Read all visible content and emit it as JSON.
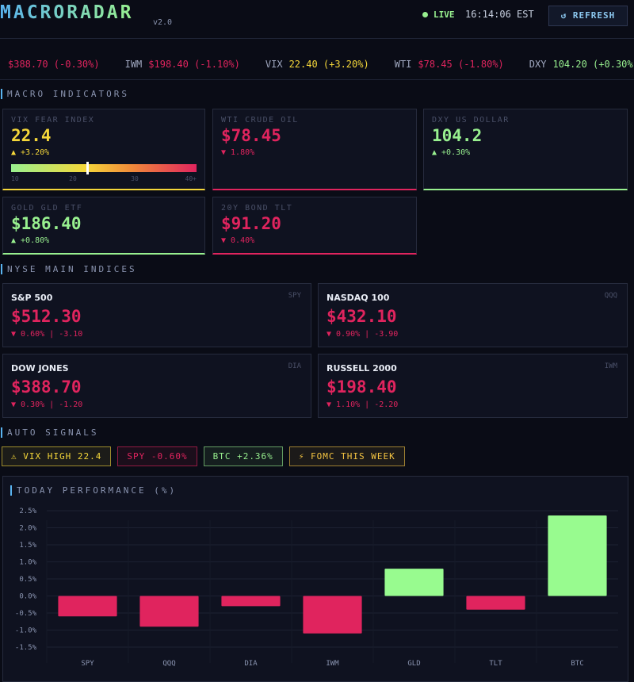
{
  "header": {
    "title": "MACRORADAR",
    "version": "v2.0",
    "status": "LIVE",
    "time": "16:14:06 EST",
    "refresh": "↺ REFRESH"
  },
  "ticker": [
    {
      "quote": "$388.70 (-0.30%)",
      "color": "#e0245e"
    },
    {
      "symbol": "IWM",
      "quote": "$198.40 (-1.10%)",
      "color": "#e0245e"
    },
    {
      "symbol": "VIX",
      "quote": "22.40 (+3.20%)",
      "color": "#f5d73a"
    },
    {
      "symbol": "WTI",
      "quote": "$78.45 (-1.80%)",
      "color": "#e0245e"
    },
    {
      "symbol": "DXY",
      "quote": "104.20 (+0.30%)",
      "color": "#98f08f"
    }
  ],
  "macro": {
    "title": "MACRO INDICATORS",
    "cards": [
      {
        "label": "VIX FEAR INDEX",
        "value": "22.4",
        "change": "▲ +3.20%",
        "color": "#f5d73a",
        "gauge": {
          "value": 22.4,
          "ticks": [
            10,
            20,
            30,
            {
              "value": 40,
              "label": "40+"
            }
          ]
        }
      },
      {
        "label": "WTI CRUDE OIL",
        "value": "$78.45",
        "change": "▼ 1.80%",
        "color": "#e0245e"
      },
      {
        "label": "DXY US DOLLAR",
        "value": "104.2",
        "change": "▲ +0.30%",
        "color": "#98f08f"
      },
      {
        "label": "GOLD GLD ETF",
        "value": "$186.40",
        "change": "▲ +0.80%",
        "color": "#98f08f"
      },
      {
        "label": "20Y BOND TLT",
        "value": "$91.20",
        "change": "▼ 0.40%",
        "color": "#e0245e"
      }
    ]
  },
  "indices": {
    "title": "NYSE MAIN INDICES",
    "cards": [
      {
        "name": "S&P 500",
        "symbol": "SPY",
        "value": "$512.30",
        "change": "▼ 0.60% | -3.10",
        "color": "#e0245e"
      },
      {
        "name": "NASDAQ 100",
        "symbol": "QQQ",
        "value": "$432.10",
        "change": "▼ 0.90% | -3.90",
        "color": "#e0245e"
      },
      {
        "name": "DOW JONES",
        "symbol": "DIA",
        "value": "$388.70",
        "change": "▼ 0.30% | -1.20",
        "color": "#e0245e"
      },
      {
        "name": "RUSSELL 2000",
        "symbol": "IWM",
        "value": "$198.40",
        "change": "▼ 1.10% | -2.20",
        "color": "#e0245e"
      }
    ]
  },
  "signals": {
    "title": "AUTO SIGNALS",
    "items": [
      {
        "text": "⚠ VIX HIGH 22.4",
        "color": "#f5d73a"
      },
      {
        "text": "SPY -0.60%",
        "color": "#e0245e"
      },
      {
        "text": "BTC +2.36%",
        "color": "#98f08f"
      },
      {
        "text": "⚡ FOMC THIS WEEK",
        "color": "#f5c542"
      }
    ]
  },
  "chart_data": {
    "type": "bar",
    "title": "TODAY PERFORMANCE (%)",
    "categories": [
      "SPY",
      "QQQ",
      "DIA",
      "IWM",
      "GLD",
      "TLT",
      "BTC"
    ],
    "values": [
      -0.6,
      -0.9,
      -0.3,
      -1.1,
      0.8,
      -0.4,
      2.36
    ],
    "positive_color": "#98fb8f",
    "negative_color": "#e0245e",
    "ylim": [
      -1.5,
      2.5
    ],
    "yticks": [
      {
        "value": 2.5,
        "label": "2.5%"
      },
      {
        "value": 2.0,
        "label": "2.0%"
      },
      {
        "value": 1.5,
        "label": "1.5%"
      },
      {
        "value": 1.0,
        "label": "1.0%"
      },
      {
        "value": 0.5,
        "label": "0.5%"
      },
      {
        "value": 0,
        "label": "0.0%"
      },
      {
        "value": -0.5,
        "label": "-0.5%"
      },
      {
        "value": -1.0,
        "label": "-1.0%"
      },
      {
        "value": -1.5,
        "label": "-1.5%"
      }
    ],
    "grid": true
  }
}
